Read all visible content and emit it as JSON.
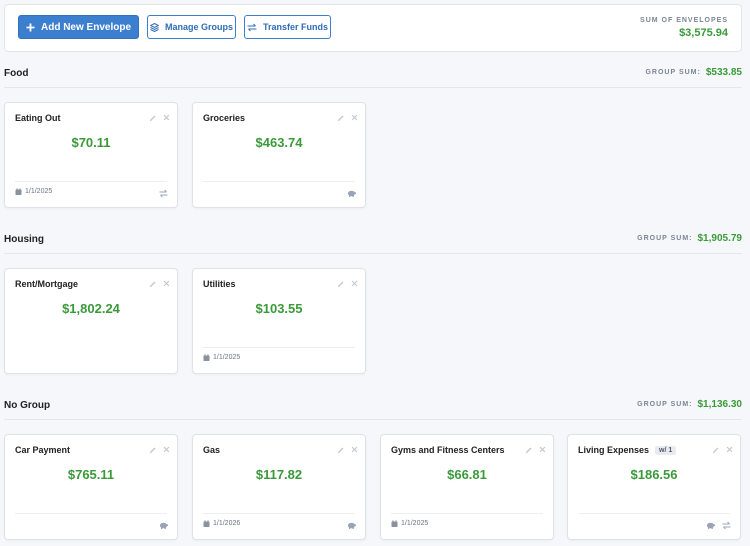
{
  "toolbar": {
    "add_button": "Add New Envelope",
    "manage_button": "Manage Groups",
    "transfer_button": "Transfer Funds",
    "sum_label": "SUM OF ENVELOPES",
    "sum": "$3,575.94"
  },
  "groups": [
    {
      "name": "Food",
      "sum_label": "GROUP SUM:",
      "sum": "$533.85",
      "envelopes": [
        {
          "name": "Eating Out",
          "amount": "$70.11",
          "date": "1/1/2025"
        },
        {
          "name": "Groceries",
          "amount": "$463.74"
        }
      ]
    },
    {
      "name": "Housing",
      "sum_label": "GROUP SUM:",
      "sum": "$1,905.79",
      "envelopes": [
        {
          "name": "Rent/Mortgage",
          "amount": "$1,802.24"
        },
        {
          "name": "Utilities",
          "amount": "$103.55",
          "date": "1/1/2025"
        }
      ]
    },
    {
      "name": "No Group",
      "sum_label": "GROUP SUM:",
      "sum": "$1,136.30",
      "envelopes": [
        {
          "name": "Car Payment",
          "amount": "$765.11"
        },
        {
          "name": "Gas",
          "amount": "$117.82",
          "date": "1/1/2026"
        },
        {
          "name": "Gyms and Fitness Centers",
          "amount": "$66.81",
          "date": "1/1/2025"
        },
        {
          "name": "Living Expenses",
          "badge": "w/ 1",
          "amount": "$186.56"
        }
      ]
    }
  ]
}
